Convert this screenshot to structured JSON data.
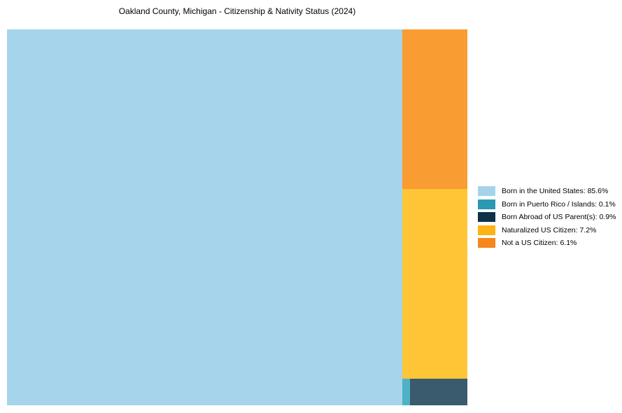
{
  "title": "Oakland County, Michigan - Citizenship & Nativity Status (2024)",
  "chart_data": {
    "type": "treemap",
    "title": "Oakland County, Michigan - Citizenship & Nativity Status (2024)",
    "unit": "percent",
    "legend_position": "right",
    "slices": [
      {
        "label": "Born in the United States",
        "value": 85.6,
        "color": "#a5d4eb",
        "legend_color": "#a6d3ea"
      },
      {
        "label": "Born in Puerto Rico / Islands",
        "value": 0.1,
        "color": "#4fb2c5",
        "legend_color": "#2a99b2"
      },
      {
        "label": "Born Abroad of US Parent(s)",
        "value": 0.9,
        "color": "#3a5a6e",
        "legend_color": "#0f3048"
      },
      {
        "label": "Naturalized US Citizen",
        "value": 7.2,
        "color": "#fec636",
        "legend_color": "#fcb415"
      },
      {
        "label": "Not a US Citizen",
        "value": 6.1,
        "color": "#f99d32",
        "legend_color": "#f5871d"
      }
    ]
  },
  "legend": {
    "items": [
      {
        "label": "Born in the United States: 85.6%"
      },
      {
        "label": "Born in Puerto Rico / Islands: 0.1%"
      },
      {
        "label": "Born Abroad of US Parent(s): 0.9%"
      },
      {
        "label": "Naturalized US Citizen: 7.2%"
      },
      {
        "label": "Not a US Citizen: 6.1%"
      }
    ]
  }
}
